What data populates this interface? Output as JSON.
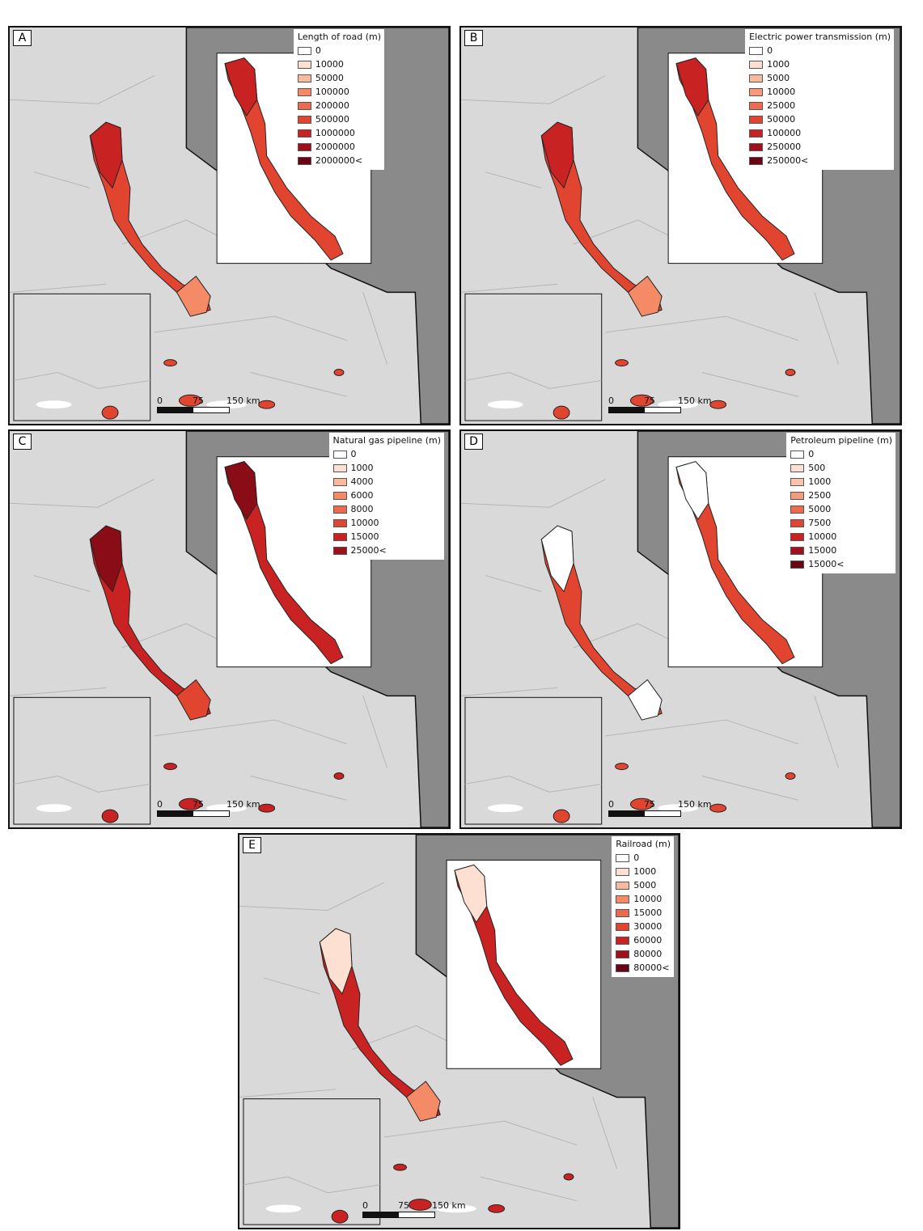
{
  "colors": {
    "land": "#d9d9d9",
    "dark_region": "#8a8a8a",
    "inset_background": "#ffffff",
    "border": "#111111",
    "region_outline": "#b5b5b5",
    "zero_fill": "#ffffff"
  },
  "scale": {
    "label_0": "0",
    "label_75": "75",
    "label_150": "150 km"
  },
  "panels": [
    {
      "id": "A",
      "label": "A",
      "legend_title": "Length of road (m)",
      "classes": [
        {
          "label": "0",
          "color": "#ffffff"
        },
        {
          "label": "10000",
          "color": "#fde0d2"
        },
        {
          "label": "50000",
          "color": "#f9b99d"
        },
        {
          "label": "100000",
          "color": "#f48a66"
        },
        {
          "label": "200000",
          "color": "#ee6a4f"
        },
        {
          "label": "500000",
          "color": "#e2452f"
        },
        {
          "label": "1000000",
          "color": "#c92222"
        },
        {
          "label": "2000000",
          "color": "#a0101a"
        },
        {
          "label": "2000000<",
          "color": "#6b0412"
        }
      ],
      "fill_north": "#c92222",
      "fill_mid": "#e2452f",
      "fill_south": "#f48a66"
    },
    {
      "id": "B",
      "label": "B",
      "legend_title": "Electric power transmission (m)",
      "classes": [
        {
          "label": "0",
          "color": "#ffffff"
        },
        {
          "label": "1000",
          "color": "#fde0d2"
        },
        {
          "label": "5000",
          "color": "#f9b99d"
        },
        {
          "label": "10000",
          "color": "#f79a7a"
        },
        {
          "label": "25000",
          "color": "#f06a4f"
        },
        {
          "label": "50000",
          "color": "#e2452f"
        },
        {
          "label": "100000",
          "color": "#c92222"
        },
        {
          "label": "250000",
          "color": "#a0101a"
        },
        {
          "label": "250000<",
          "color": "#6b0412"
        }
      ],
      "fill_north": "#c92222",
      "fill_mid": "#e2452f",
      "fill_south": "#f48a66"
    },
    {
      "id": "C",
      "label": "C",
      "legend_title": "Natural gas pipeline (m)",
      "classes": [
        {
          "label": "0",
          "color": "#ffffff"
        },
        {
          "label": "1000",
          "color": "#fde0d2"
        },
        {
          "label": "4000",
          "color": "#f9b99d"
        },
        {
          "label": "6000",
          "color": "#f48a66"
        },
        {
          "label": "8000",
          "color": "#ee6a4f"
        },
        {
          "label": "10000",
          "color": "#e2452f"
        },
        {
          "label": "15000",
          "color": "#c92222"
        },
        {
          "label": "25000<",
          "color": "#a0101a"
        }
      ],
      "fill_north": "#8a0c16",
      "fill_mid": "#c92222",
      "fill_south": "#e2452f"
    },
    {
      "id": "D",
      "label": "D",
      "legend_title": "Petroleum pipeline (m)",
      "classes": [
        {
          "label": "0",
          "color": "#ffffff"
        },
        {
          "label": "500",
          "color": "#fde0d2"
        },
        {
          "label": "1000",
          "color": "#f9c4ab"
        },
        {
          "label": "2500",
          "color": "#f59b7a"
        },
        {
          "label": "5000",
          "color": "#ee6a4f"
        },
        {
          "label": "7500",
          "color": "#e2452f"
        },
        {
          "label": "10000",
          "color": "#c92222"
        },
        {
          "label": "15000",
          "color": "#a0101a"
        },
        {
          "label": "15000<",
          "color": "#6b0412"
        }
      ],
      "fill_north": "#ffffff",
      "fill_mid": "#e2452f",
      "fill_south": "#ffffff"
    },
    {
      "id": "E",
      "label": "E",
      "legend_title": "Railroad (m)",
      "classes": [
        {
          "label": "0",
          "color": "#ffffff"
        },
        {
          "label": "1000",
          "color": "#fde0d2"
        },
        {
          "label": "5000",
          "color": "#f9b99d"
        },
        {
          "label": "10000",
          "color": "#f48a66"
        },
        {
          "label": "15000",
          "color": "#ee6a4f"
        },
        {
          "label": "30000",
          "color": "#e2452f"
        },
        {
          "label": "60000",
          "color": "#c92222"
        },
        {
          "label": "80000",
          "color": "#a0101a"
        },
        {
          "label": "80000<",
          "color": "#6b0412"
        }
      ],
      "fill_north": "#fde0d2",
      "fill_mid": "#c92222",
      "fill_south": "#f48a66"
    }
  ]
}
